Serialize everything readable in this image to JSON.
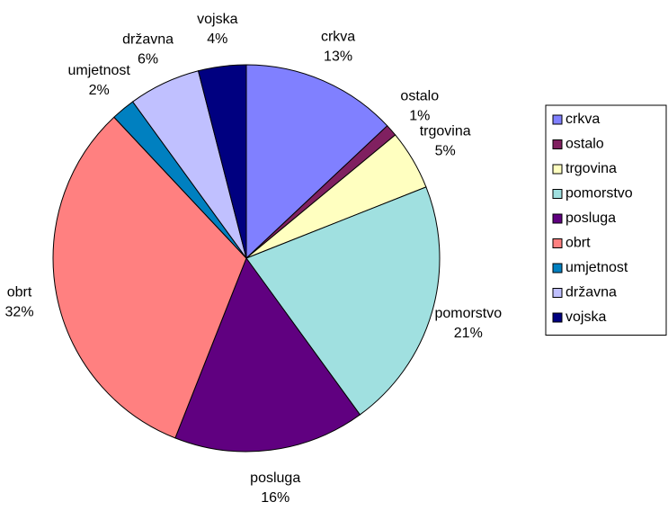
{
  "chart_data": {
    "type": "pie",
    "categories": [
      "crkva",
      "ostalo",
      "trgovina",
      "pomorstvo",
      "posluga",
      "obrt",
      "umjetnost",
      "državna",
      "vojska"
    ],
    "values": [
      13,
      1,
      5,
      21,
      16,
      32,
      2,
      6,
      4
    ],
    "value_labels": [
      "13%",
      "1%",
      "5%",
      "21%",
      "16%",
      "32%",
      "2%",
      "6%",
      "4%"
    ],
    "colors": [
      "#8080ff",
      "#802060",
      "#ffffc0",
      "#a0e0e0",
      "#600080",
      "#ff8080",
      "#0080c0",
      "#c0c0ff",
      "#000080"
    ],
    "legend": "right"
  }
}
